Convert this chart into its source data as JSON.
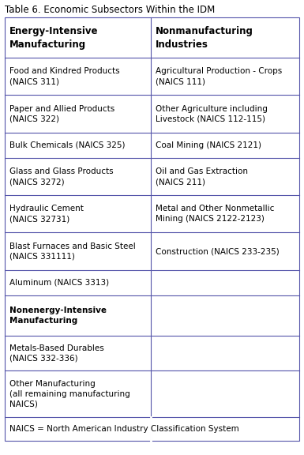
{
  "title": "Table 6. Economic Subsectors Within the IDM",
  "col1_header": "Energy-Intensive\nManufacturing",
  "col2_header": "Nonmanufacturing\nIndustries",
  "rows": [
    {
      "col1": "Food and Kindred Products\n(NAICS 311)",
      "col2": "Agricultural Production - Crops\n(NAICS 111)",
      "col1_bold": false,
      "col2_bold": false
    },
    {
      "col1": "Paper and Allied Products\n(NAICS 322)",
      "col2": "Other Agriculture including\nLivestock (NAICS 112-115)",
      "col1_bold": false,
      "col2_bold": false
    },
    {
      "col1": "Bulk Chemicals (NAICS 325)",
      "col2": "Coal Mining (NAICS 2121)",
      "col1_bold": false,
      "col2_bold": false
    },
    {
      "col1": "Glass and Glass Products\n(NAICS 3272)",
      "col2": "Oil and Gas Extraction\n(NAICS 211)",
      "col1_bold": false,
      "col2_bold": false
    },
    {
      "col1": "Hydraulic Cement\n(NAICS 32731)",
      "col2": "Metal and Other Nonmetallic\nMining (NAICS 2122-2123)",
      "col1_bold": false,
      "col2_bold": false
    },
    {
      "col1": "Blast Furnaces and Basic Steel\n(NAICS 331111)",
      "col2": "Construction (NAICS 233-235)",
      "col1_bold": false,
      "col2_bold": false
    },
    {
      "col1": "Aluminum (NAICS 3313)",
      "col2": "",
      "col1_bold": false,
      "col2_bold": false
    },
    {
      "col1": "Nonenergy-Intensive\nManufacturing",
      "col2": "",
      "col1_bold": true,
      "col2_bold": false
    },
    {
      "col1": "Metals-Based Durables\n(NAICS 332-336)",
      "col2": "",
      "col1_bold": false,
      "col2_bold": false
    },
    {
      "col1": "Other Manufacturing\n(all remaining manufacturing\nNAICS)",
      "col2": "",
      "col1_bold": false,
      "col2_bold": false
    }
  ],
  "footnote": "NAICS = North American Industry Classification System",
  "bg_color": "#ffffff",
  "border_color": "#5555aa",
  "title_fontsize": 8.5,
  "cell_fontsize": 7.5,
  "header_fontsize": 8.5,
  "footnote_fontsize": 7.5,
  "col_split": 0.495
}
